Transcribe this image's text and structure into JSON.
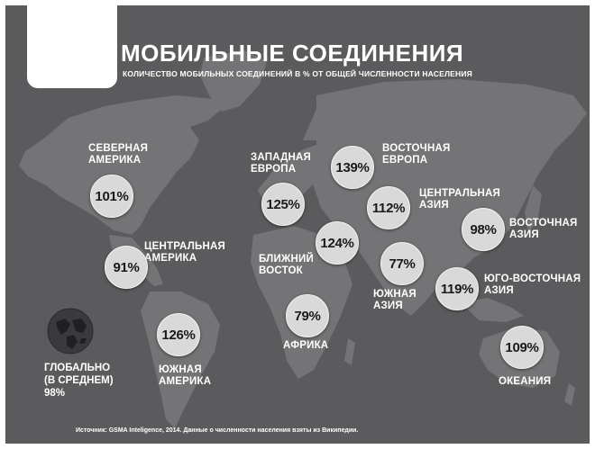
{
  "title": "МОБИЛЬНЫЕ СОЕДИНЕНИЯ",
  "subtitle": "КОЛИЧЕСТВО МОБИЛЬНЫХ СОЕДИНЕНИЙ В % ОТ ОБЩЕЙ ЧИСЛЕННОСТИ НАСЕЛЕНИЯ",
  "colors": {
    "background": "#5b5b5d",
    "land": "#747476",
    "bubble": "#d9d9d9",
    "text": "#ffffff"
  },
  "regions": [
    {
      "name": "СЕВЕРНАЯ\nАМЕРИКА",
      "value": "101%"
    },
    {
      "name": "ЦЕНТРАЛЬНАЯ\nАМЕРИКА",
      "value": "91%"
    },
    {
      "name": "ЮЖНАЯ\nАМЕРИКА",
      "value": "126%"
    },
    {
      "name": "ЗАПАДНАЯ\nЕВРОПА",
      "value": "125%"
    },
    {
      "name": "ВОСТОЧНАЯ\nЕВРОПА",
      "value": "139%"
    },
    {
      "name": "ЦЕНТРАЛЬНАЯ\nАЗИЯ",
      "value": "112%"
    },
    {
      "name": "БЛИЖНИЙ\nВОСТОК",
      "value": "124%"
    },
    {
      "name": "АФРИКА",
      "value": "79%"
    },
    {
      "name": "ЮЖНАЯ\nАЗИЯ",
      "value": "77%"
    },
    {
      "name": "ВОСТОЧНАЯ\nАЗИЯ",
      "value": "98%"
    },
    {
      "name": "ЮГО-ВОСТОЧНАЯ\nАЗИЯ",
      "value": "119%"
    },
    {
      "name": "ОКЕАНИЯ",
      "value": "109%"
    }
  ],
  "global": {
    "label": "ГЛОБАЛЬНО\n(В СРЕДНЕМ)",
    "value": "98%"
  },
  "source": "Источник: GSMA Inteligence, 2014. Данные о численности населения взяты из Википедии."
}
